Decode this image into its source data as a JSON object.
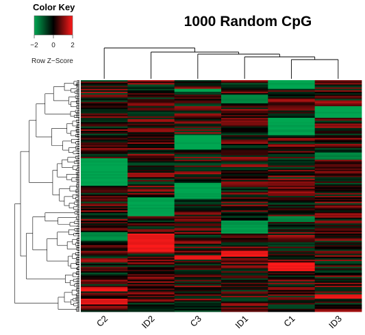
{
  "chart_data": {
    "type": "heatmap",
    "title": "1000 Random CpG",
    "columns": [
      "C2",
      "ID2",
      "C3",
      "ID1",
      "C1",
      "ID3"
    ],
    "row_count": 1000,
    "value_range": [
      -2,
      2
    ],
    "colors": {
      "low": "#00a651",
      "mid": "#000000",
      "high": "#ff1a1a"
    },
    "color_key": {
      "title": "Color Key",
      "xlabel": "Row Z−Score",
      "ticks": [
        "−2",
        "0",
        "2"
      ]
    },
    "column_dendrogram": true,
    "row_dendrogram": true
  }
}
